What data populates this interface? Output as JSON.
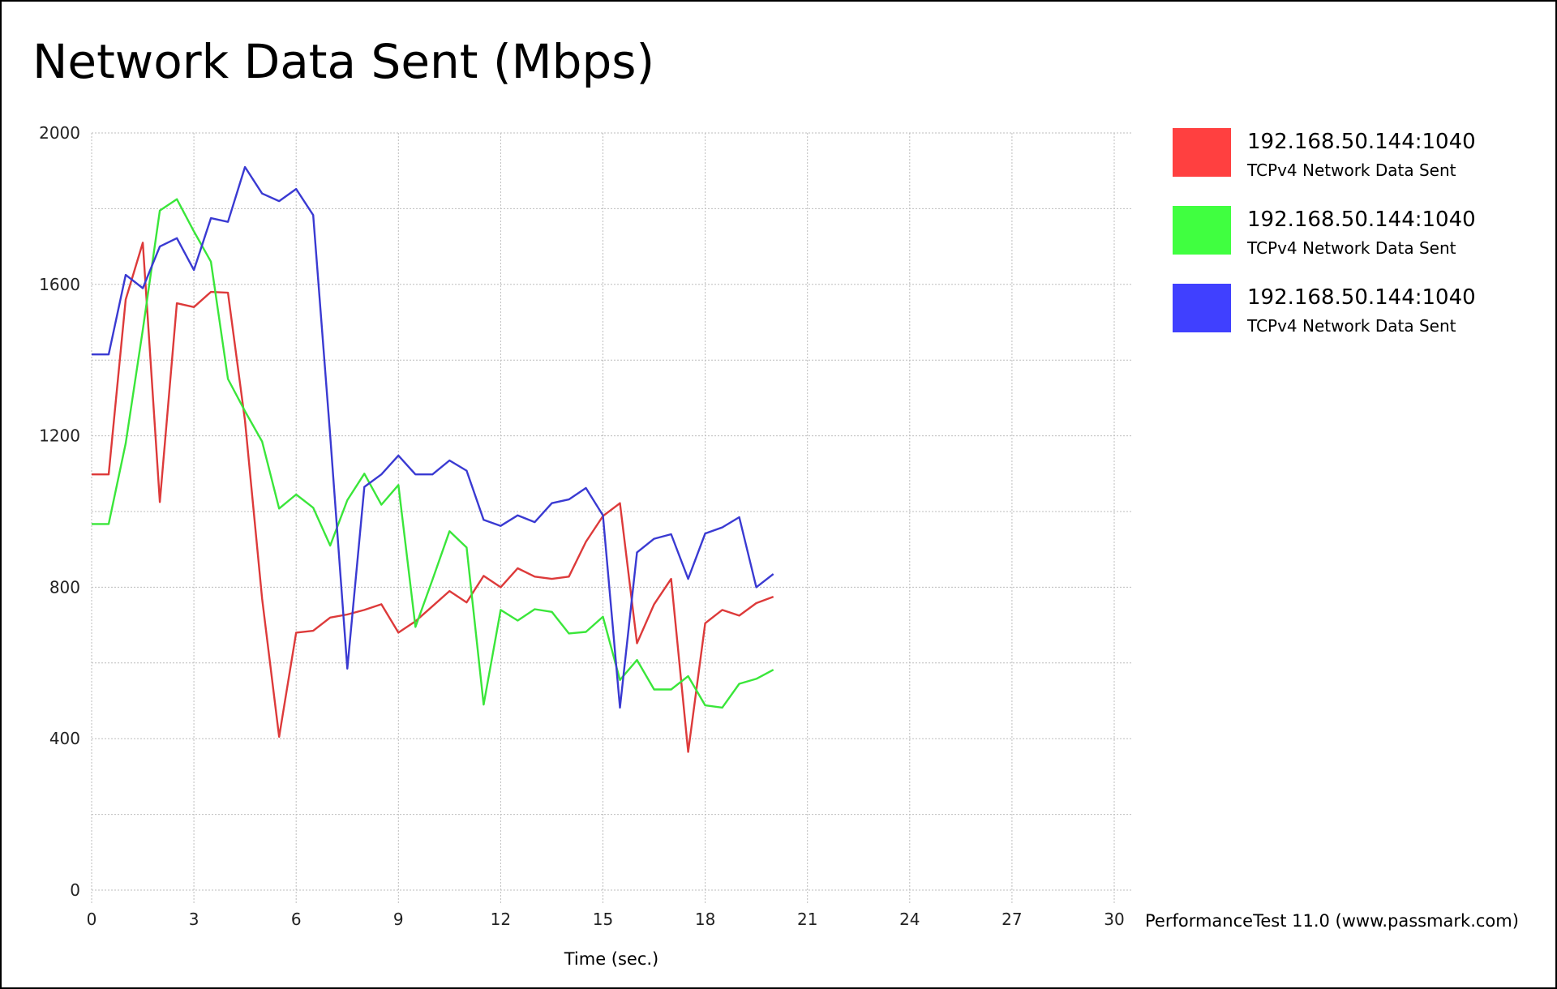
{
  "colors": {
    "red": "#ff4040",
    "green": "#40ff40",
    "blue": "#4040ff",
    "grid": "#bdbdbd",
    "line_red": "#dd3a3a",
    "line_green": "#3ae63a",
    "line_blue": "#3a3ad2"
  },
  "credit": "PerformanceTest 11.0 (www.passmark.com)",
  "chart_data": {
    "type": "line",
    "title": "Network Data Sent (Mbps)",
    "xlabel": "Time (sec.)",
    "ylabel": "",
    "xlim": [
      0,
      30
    ],
    "ylim": [
      0,
      2000
    ],
    "xticks": [
      "0",
      "3",
      "6",
      "9",
      "12",
      "15",
      "18",
      "21",
      "24",
      "27",
      "30"
    ],
    "yticks": [
      "0",
      "400",
      "800",
      "1200",
      "1600",
      "2000"
    ],
    "grid": true,
    "legend_position": "right",
    "series": [
      {
        "name": "192.168.50.144:1040",
        "description": "TCPv4 Network Data Sent",
        "color": "red",
        "x": [
          0,
          0.5,
          1,
          1.5,
          2,
          2.5,
          3,
          3.5,
          4,
          4.5,
          5,
          5.5,
          6,
          6.5,
          7,
          7.5,
          8,
          8.5,
          9,
          9.5,
          10,
          10.5,
          11,
          11.5,
          12,
          12.5,
          13,
          13.5,
          14,
          14.5,
          15,
          15.5,
          16,
          16.5,
          17,
          17.5,
          18,
          18.5,
          19,
          19.5,
          20
        ],
        "y": [
          1098,
          1098,
          1560,
          1710,
          1025,
          1550,
          1540,
          1580,
          1578,
          1240,
          770,
          405,
          680,
          685,
          720,
          728,
          740,
          755,
          680,
          710,
          750,
          790,
          760,
          830,
          800,
          850,
          828,
          822,
          828,
          920,
          988,
          1022,
          652,
          755,
          822,
          365,
          705,
          740,
          725,
          758,
          775
        ]
      },
      {
        "name": "192.168.50.144:1040",
        "description": "TCPv4 Network Data Sent",
        "color": "green",
        "x": [
          0,
          0.5,
          1,
          1.5,
          2,
          2.5,
          3,
          3.5,
          4,
          4.5,
          5,
          5.5,
          6,
          6.5,
          7,
          7.5,
          8,
          8.5,
          9,
          9.5,
          10,
          10.5,
          11,
          11.5,
          12,
          12.5,
          13,
          13.5,
          14,
          14.5,
          15,
          15.5,
          16,
          16.5,
          17,
          17.5,
          18,
          18.5,
          19,
          19.5,
          20
        ],
        "y": [
          967,
          967,
          1180,
          1480,
          1795,
          1825,
          1740,
          1660,
          1350,
          1265,
          1185,
          1008,
          1045,
          1010,
          910,
          1030,
          1100,
          1018,
          1070,
          695,
          820,
          948,
          905,
          490,
          740,
          712,
          742,
          735,
          678,
          682,
          722,
          555,
          608,
          530,
          530,
          565,
          488,
          482,
          545,
          558,
          582
        ]
      },
      {
        "name": "192.168.50.144:1040",
        "description": "TCPv4 Network Data Sent",
        "color": "blue",
        "x": [
          0,
          0.5,
          1,
          1.5,
          2,
          2.5,
          3,
          3.5,
          4,
          4.5,
          5,
          5.5,
          6,
          6.5,
          7,
          7.5,
          8,
          8.5,
          9,
          9.5,
          10,
          10.5,
          11,
          11.5,
          12,
          12.5,
          13,
          13.5,
          14,
          14.5,
          15,
          15.5,
          16,
          16.5,
          17,
          17.5,
          18,
          18.5,
          19,
          19.5,
          20
        ],
        "y": [
          1415,
          1415,
          1625,
          1590,
          1700,
          1722,
          1638,
          1775,
          1765,
          1910,
          1840,
          1820,
          1852,
          1783,
          1200,
          585,
          1065,
          1098,
          1148,
          1098,
          1098,
          1135,
          1108,
          978,
          962,
          990,
          972,
          1022,
          1032,
          1062,
          990,
          482,
          892,
          928,
          940,
          822,
          942,
          958,
          985,
          800,
          835
        ]
      }
    ]
  }
}
